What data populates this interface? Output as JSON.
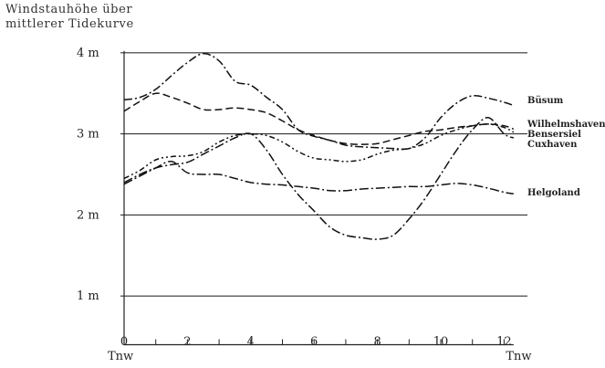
{
  "chart_data": {
    "type": "line",
    "ylabel_lines": [
      "Windstauhöhe über",
      "mittlerer Tidekurve"
    ],
    "y_ticks": [
      {
        "value": 1,
        "label": "1 m"
      },
      {
        "value": 2,
        "label": "2 m"
      },
      {
        "value": 3,
        "label": "3 m"
      },
      {
        "value": 4,
        "label": "4 m"
      }
    ],
    "x_ticks": [
      {
        "value": 0,
        "label": "0"
      },
      {
        "value": 2,
        "label": "2"
      },
      {
        "value": 4,
        "label": "4"
      },
      {
        "value": 6,
        "label": "6"
      },
      {
        "value": 8,
        "label": "8"
      },
      {
        "value": 10,
        "label": "10"
      },
      {
        "value": 12,
        "label": "12"
      }
    ],
    "x_end_labels": [
      "Tnw",
      "Tnw"
    ],
    "xlim": [
      0,
      12.3
    ],
    "ylim": [
      0,
      4
    ],
    "grid": "horizontal",
    "series": [
      {
        "name": "Büsum",
        "dash": "9,3,2,3",
        "x": [
          0,
          0.5,
          1,
          1.5,
          2,
          2.5,
          3,
          3.5,
          4,
          4.5,
          5,
          5.5,
          6,
          6.5,
          7,
          7.5,
          8,
          8.5,
          9,
          9.5,
          10,
          10.5,
          11,
          11.5,
          12,
          12.3
        ],
        "y": [
          3.42,
          3.45,
          3.55,
          3.72,
          3.88,
          3.99,
          3.9,
          3.65,
          3.6,
          3.45,
          3.3,
          3.05,
          2.97,
          2.92,
          2.86,
          2.84,
          2.83,
          2.82,
          2.82,
          2.95,
          3.2,
          3.38,
          3.47,
          3.44,
          3.39,
          3.35
        ]
      },
      {
        "name": "Wilhelmshaven",
        "dash": "8,4",
        "x": [
          0,
          0.5,
          1,
          1.5,
          2,
          2.5,
          3,
          3.5,
          4,
          4.5,
          5,
          5.5,
          6,
          6.5,
          7,
          7.5,
          8,
          8.5,
          9,
          9.5,
          10,
          10.5,
          11,
          11.5,
          12,
          12.3
        ],
        "y": [
          3.28,
          3.4,
          3.5,
          3.45,
          3.38,
          3.3,
          3.3,
          3.32,
          3.3,
          3.26,
          3.16,
          3.05,
          2.98,
          2.92,
          2.88,
          2.87,
          2.88,
          2.93,
          2.98,
          3.03,
          3.05,
          3.08,
          3.1,
          3.12,
          3.1,
          3.06
        ]
      },
      {
        "name": "Bensersiel",
        "dash": "6,3,2,3,2,3",
        "x": [
          0,
          0.5,
          1,
          1.5,
          2,
          2.5,
          3,
          3.5,
          4,
          4.5,
          5,
          5.5,
          6,
          6.5,
          7,
          7.5,
          8,
          8.5,
          9,
          9.5,
          10,
          10.5,
          11,
          11.5,
          12,
          12.3
        ],
        "y": [
          2.45,
          2.55,
          2.68,
          2.72,
          2.73,
          2.78,
          2.9,
          2.98,
          3.0,
          2.98,
          2.9,
          2.78,
          2.7,
          2.68,
          2.66,
          2.68,
          2.75,
          2.8,
          2.82,
          2.88,
          2.98,
          3.05,
          3.1,
          3.12,
          3.08,
          3.02
        ]
      },
      {
        "name": "Cuxhaven",
        "dash": "10,3,2,3",
        "x": [
          0,
          0.5,
          1,
          1.5,
          2,
          2.5,
          3,
          3.5,
          4,
          4.5,
          5,
          5.5,
          6,
          6.5,
          7,
          7.5,
          8,
          8.5,
          9,
          9.5,
          10,
          10.5,
          11,
          11.5,
          12,
          12.3
        ],
        "y": [
          2.4,
          2.5,
          2.58,
          2.62,
          2.65,
          2.75,
          2.85,
          2.95,
          3.0,
          2.8,
          2.5,
          2.25,
          2.05,
          1.85,
          1.75,
          1.72,
          1.7,
          1.75,
          1.95,
          2.2,
          2.5,
          2.8,
          3.05,
          3.2,
          3.0,
          2.95
        ]
      },
      {
        "name": "Helgoland",
        "dash": "10,3,2,3",
        "x": [
          0,
          0.5,
          1,
          1.5,
          2,
          2.5,
          3,
          3.5,
          4,
          4.5,
          5,
          5.5,
          6,
          6.5,
          7,
          7.5,
          8,
          8.5,
          9,
          9.5,
          10,
          10.5,
          11,
          11.5,
          12,
          12.3
        ],
        "y": [
          2.38,
          2.48,
          2.58,
          2.66,
          2.52,
          2.5,
          2.5,
          2.45,
          2.4,
          2.38,
          2.37,
          2.35,
          2.33,
          2.3,
          2.3,
          2.32,
          2.33,
          2.34,
          2.35,
          2.35,
          2.37,
          2.39,
          2.37,
          2.33,
          2.28,
          2.26
        ]
      }
    ]
  }
}
